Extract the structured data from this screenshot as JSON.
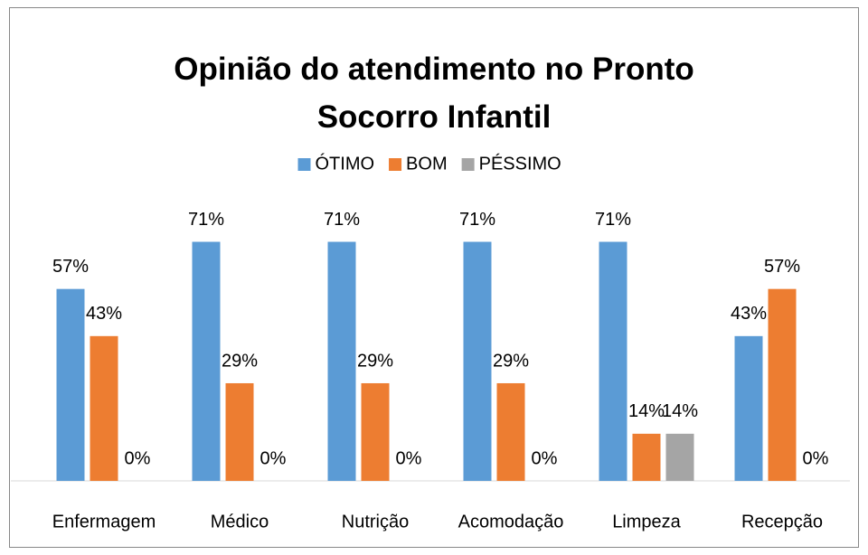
{
  "chart_data": {
    "type": "bar",
    "title": "Opinião do atendimento no Pronto Socorro Infantil",
    "categories": [
      "Enfermagem",
      "Médico",
      "Nutrição",
      "Acomodação",
      "Limpeza",
      "Recepção"
    ],
    "series": [
      {
        "name": "ÓTIMO",
        "color": "#5b9bd5",
        "values": [
          57,
          71,
          71,
          71,
          71,
          43
        ],
        "value_labels": [
          "57%",
          "71%",
          "71%",
          "71%",
          "71%",
          "43%"
        ]
      },
      {
        "name": "BOM",
        "color": "#ed7d31",
        "values": [
          43,
          29,
          29,
          29,
          14,
          57
        ],
        "value_labels": [
          "43%",
          "29%",
          "29%",
          "29%",
          "14%",
          "57%"
        ]
      },
      {
        "name": "PÉSSIMO",
        "color": "#a5a5a5",
        "values": [
          0,
          0,
          0,
          0,
          14,
          0
        ],
        "value_labels": [
          "0%",
          "0%",
          "0%",
          "0%",
          "14%",
          "0%"
        ]
      }
    ],
    "ylim": [
      0,
      80
    ],
    "legend": "top"
  }
}
